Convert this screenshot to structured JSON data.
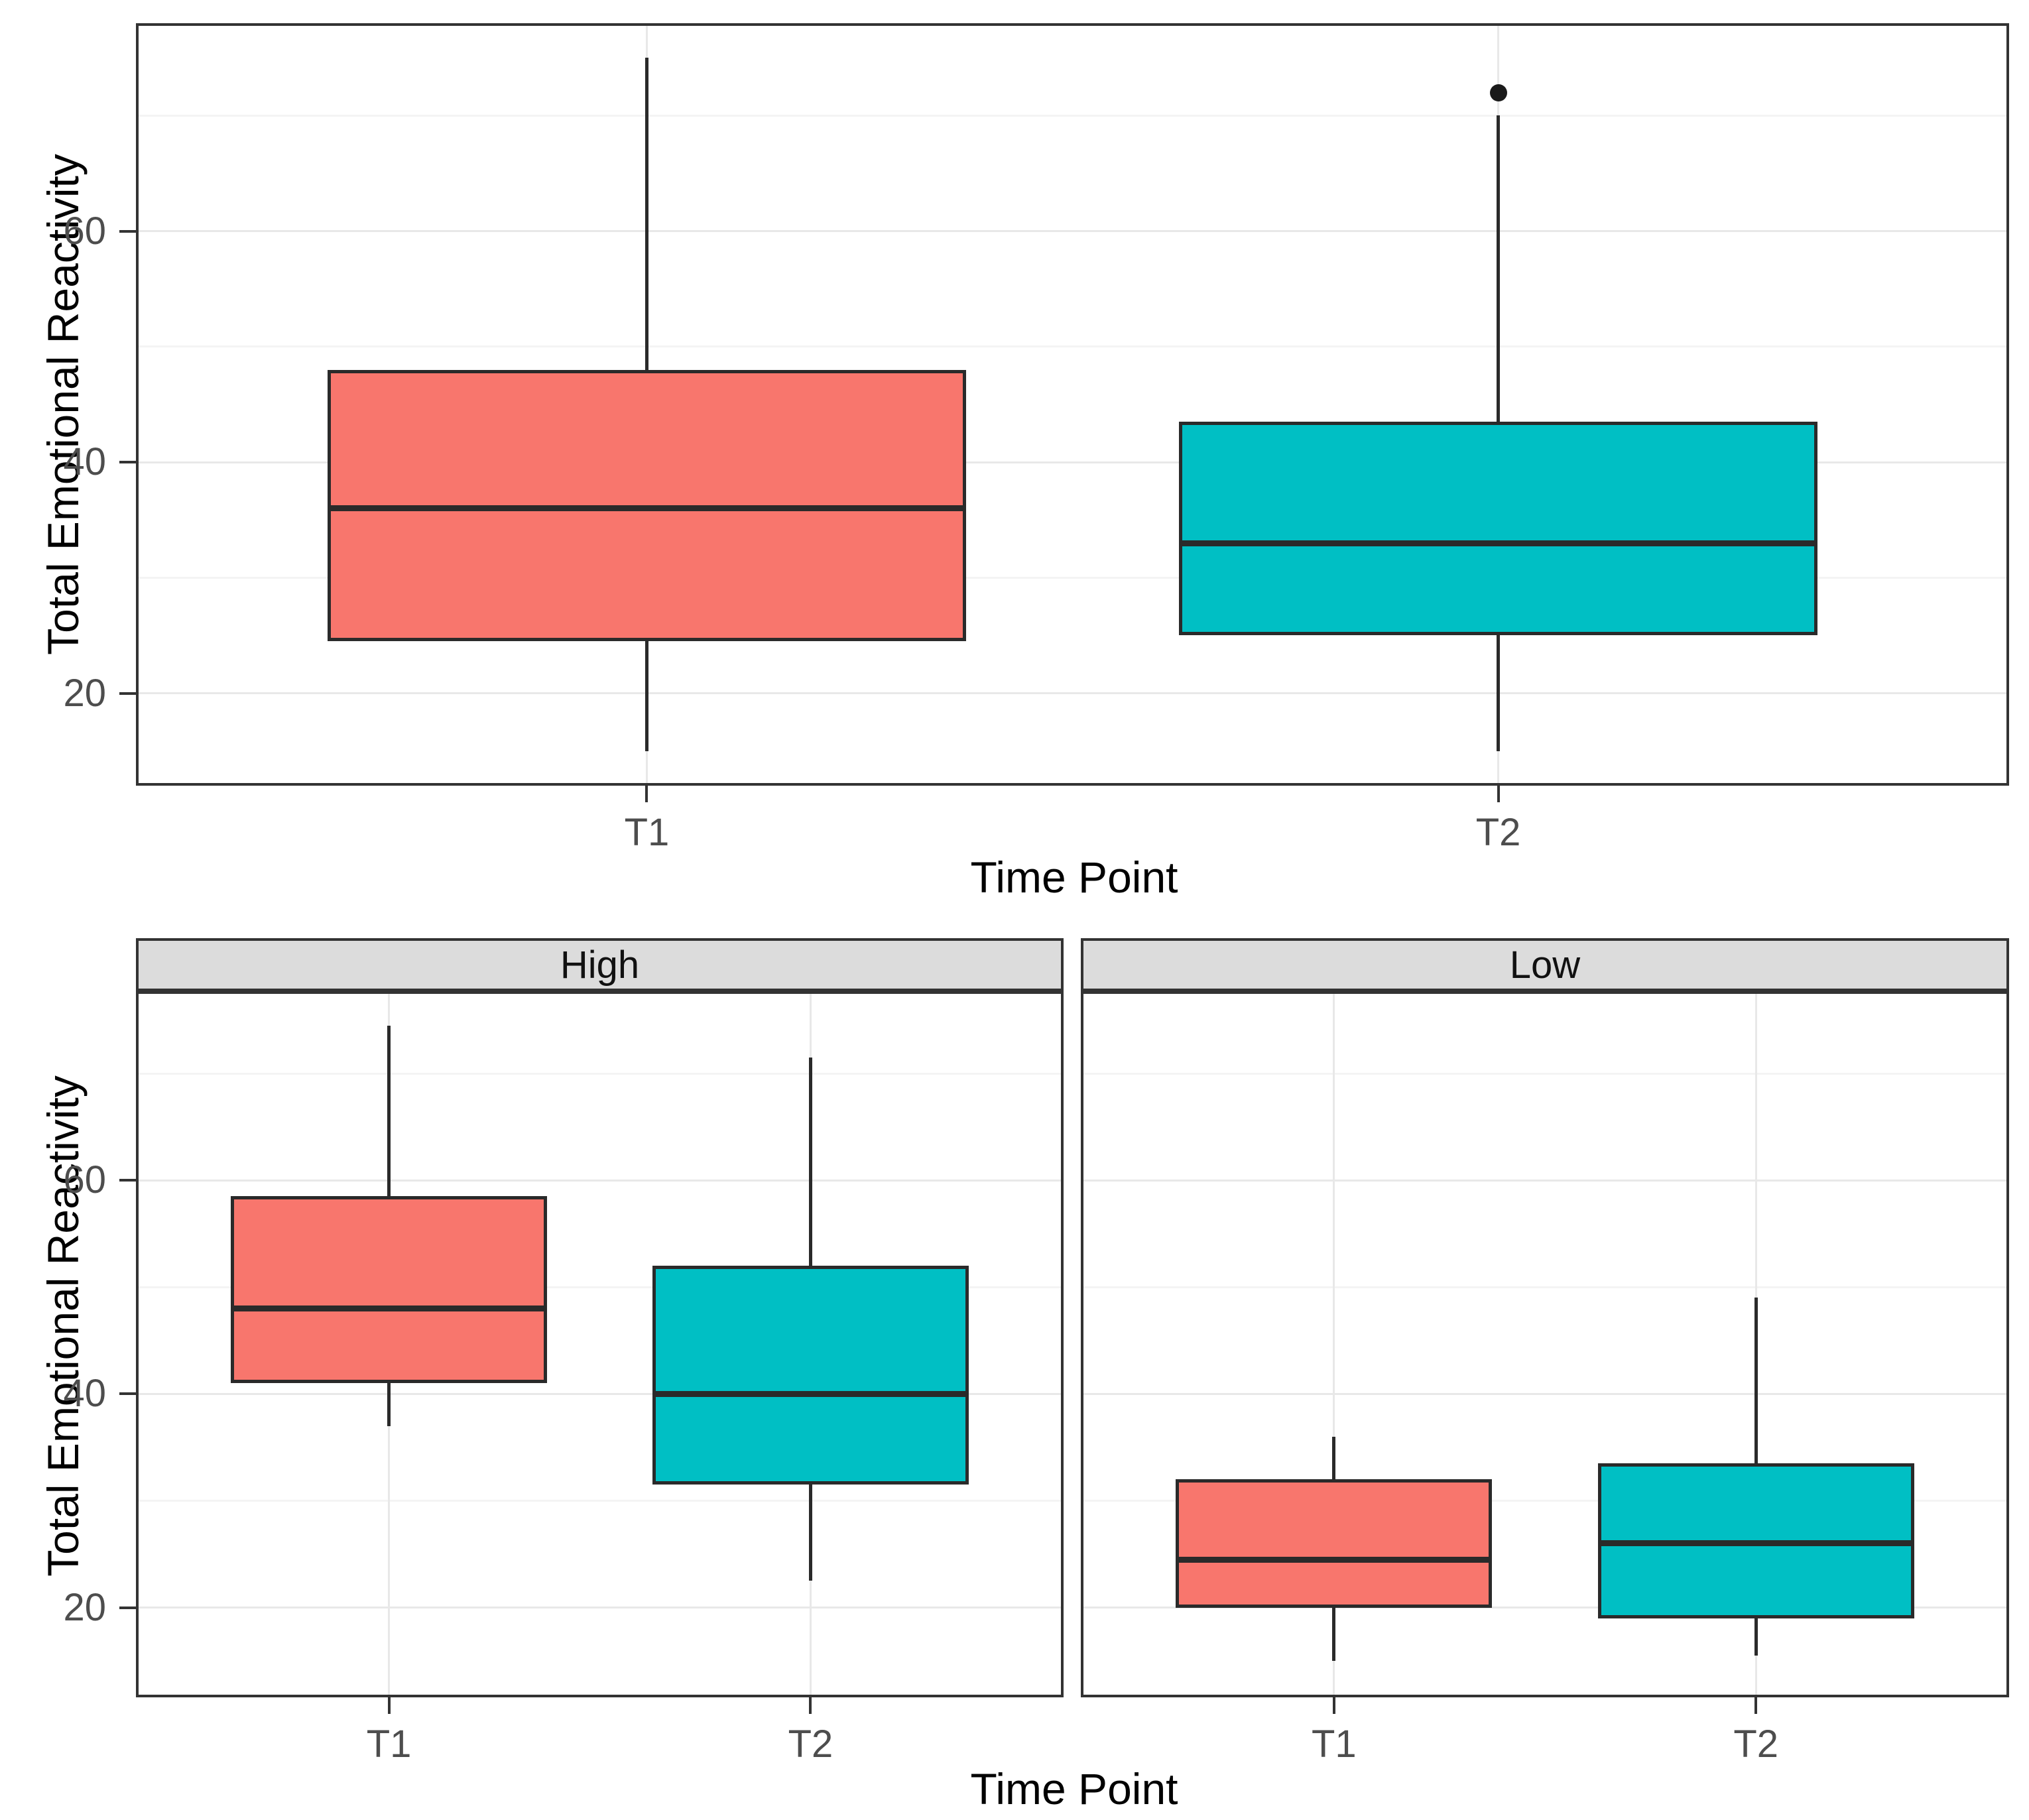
{
  "figure_bg": "#ffffff",
  "palette": {
    "t1_fill": "#F8766D",
    "t2_fill": "#00BFC4",
    "box_stroke": "#2a2a2a",
    "outlier_color": "#1a1a1a",
    "panel_border": "#333333",
    "grid_major": "#e8e8e8",
    "grid_minor": "#f4f4f4",
    "strip_bg": "#dcdcdc",
    "tick_text": "#4d4d4d",
    "title_text": "#000000"
  },
  "chart_data": [
    {
      "id": "overall-boxplot",
      "type": "boxplot",
      "xlabel": "Time Point",
      "ylabel": "Total Emotional Reactivity",
      "categories": [
        "T1",
        "T2"
      ],
      "y_ticks": [
        20,
        40,
        60
      ],
      "y_tick_labels": [
        "20",
        "40",
        "60"
      ],
      "y_grid_major": [
        20,
        40,
        60
      ],
      "y_grid_minor": [
        30,
        50,
        70
      ],
      "ylim": [
        12,
        78
      ],
      "legend": "none",
      "grid": true,
      "series": [
        {
          "category": "T1",
          "fill": "#F8766D",
          "whisker_low": 15,
          "q1": 24.5,
          "median": 36,
          "q3": 48,
          "whisker_high": 75,
          "outliers": []
        },
        {
          "category": "T2",
          "fill": "#00BFC4",
          "whisker_low": 15,
          "q1": 25,
          "median": 33,
          "q3": 43.5,
          "whisker_high": 70,
          "outliers": [
            72
          ]
        }
      ]
    },
    {
      "id": "faceted-boxplot",
      "type": "boxplot",
      "xlabel": "Time Point",
      "ylabel": "Total Emotional Reactivity",
      "categories": [
        "T1",
        "T2"
      ],
      "y_ticks": [
        20,
        40,
        60
      ],
      "y_tick_labels": [
        "20",
        "40",
        "60"
      ],
      "y_grid_major": [
        20,
        40,
        60
      ],
      "y_grid_minor": [
        30,
        50,
        70
      ],
      "ylim": [
        11.6,
        77.7
      ],
      "legend": "none",
      "grid": true,
      "facets": [
        {
          "label": "High",
          "series": [
            {
              "category": "T1",
              "fill": "#F8766D",
              "whisker_low": 37,
              "q1": 41,
              "median": 48,
              "q3": 58.5,
              "whisker_high": 74.5,
              "outliers": []
            },
            {
              "category": "T2",
              "fill": "#00BFC4",
              "whisker_low": 22.5,
              "q1": 31.5,
              "median": 40,
              "q3": 52,
              "whisker_high": 71.5,
              "outliers": []
            }
          ]
        },
        {
          "label": "Low",
          "series": [
            {
              "category": "T1",
              "fill": "#F8766D",
              "whisker_low": 15,
              "q1": 20,
              "median": 24.5,
              "q3": 32,
              "whisker_high": 36,
              "outliers": []
            },
            {
              "category": "T2",
              "fill": "#00BFC4",
              "whisker_low": 15.5,
              "q1": 19,
              "median": 26,
              "q3": 33.5,
              "whisker_high": 49,
              "outliers": []
            }
          ]
        }
      ]
    }
  ]
}
